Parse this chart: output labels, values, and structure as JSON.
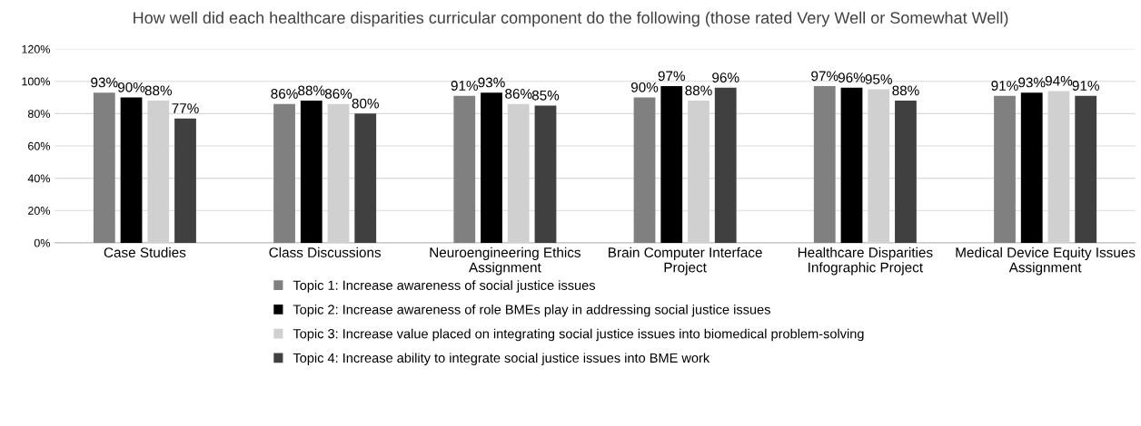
{
  "chart_data": {
    "type": "bar",
    "title": "How well did each healthcare disparities curricular component do the following (those rated Very Well or Somewhat Well)",
    "categories": [
      "Case Studies",
      "Class Discussions",
      "Neuroengineering Ethics\nAssignment",
      "Brain Computer Interface\nProject",
      "Healthcare Disparities\nInfographic Project",
      "Medical Device Equity Issues\nAssignment"
    ],
    "series": [
      {
        "name": "Topic 1: Increase awareness of social justice issues",
        "color": "#808080",
        "values": [
          93,
          86,
          91,
          90,
          97,
          91
        ],
        "value_labels": [
          "93%",
          "86%",
          "91%",
          "90%",
          "97%",
          "91%"
        ]
      },
      {
        "name": "Topic 2: Increase awareness of role BMEs play in addressing social justice issues",
        "color": "#000000",
        "values": [
          90,
          88,
          93,
          97,
          96,
          93
        ],
        "value_labels": [
          "90%",
          "88%",
          "93%",
          "97%",
          "96%",
          "93%"
        ]
      },
      {
        "name": "Topic 3: Increase value placed on integrating social justice issues into biomedical problem-solving",
        "color": "#d0d0d0",
        "values": [
          88,
          86,
          86,
          88,
          95,
          94
        ],
        "value_labels": [
          "88%",
          "86%",
          "86%",
          "88%",
          "95%",
          "94%"
        ]
      },
      {
        "name": "Topic 4: Increase ability to integrate social justice issues into BME work",
        "color": "#404040",
        "values": [
          77,
          80,
          85,
          96,
          88,
          91
        ],
        "value_labels": [
          "77%",
          "80%",
          "85%",
          "96%",
          "88%",
          "91%"
        ]
      }
    ],
    "ylim": [
      0,
      120
    ],
    "yticks": [
      {
        "value": 0,
        "label": "0%"
      },
      {
        "value": 20,
        "label": "20%"
      },
      {
        "value": 40,
        "label": "40%"
      },
      {
        "value": 60,
        "label": "60%"
      },
      {
        "value": 80,
        "label": "80%"
      },
      {
        "value": 100,
        "label": "100%"
      },
      {
        "value": 120,
        "label": "120%"
      }
    ],
    "grid": "y",
    "legend": "bottom"
  }
}
